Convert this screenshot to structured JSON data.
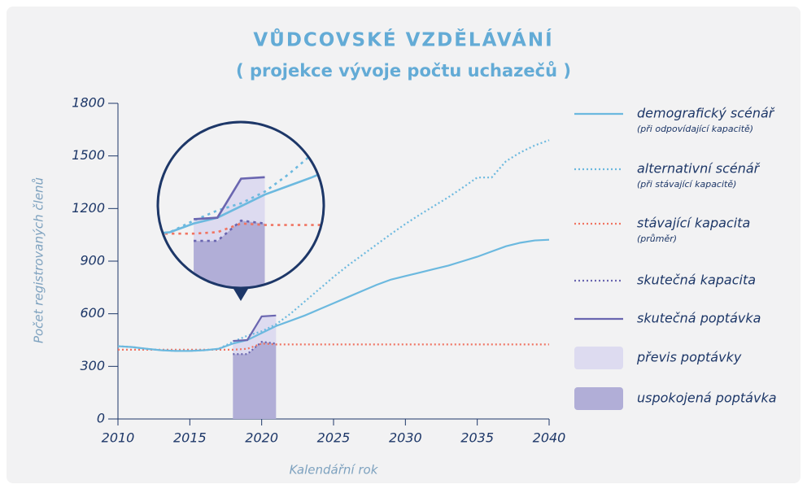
{
  "chart_data": {
    "type": "line",
    "title": "VŮDCOVSKÉ VZDĚLÁVÁNÍ",
    "subtitle": "( projekce vývoje počtu uchazečů )",
    "x_label": "Kalendářní rok",
    "y_label": "Počet registrovaných členů",
    "x": [
      2010,
      2011,
      2012,
      2013,
      2014,
      2015,
      2016,
      2017,
      2018,
      2019,
      2020,
      2021,
      2022,
      2023,
      2024,
      2025,
      2026,
      2027,
      2028,
      2029,
      2030,
      2031,
      2032,
      2033,
      2034,
      2035,
      2036,
      2037,
      2038,
      2039,
      2040
    ],
    "xlim": [
      2010,
      2040
    ],
    "xticks": [
      2010,
      2015,
      2020,
      2025,
      2030,
      2035,
      2040
    ],
    "ylim": [
      0,
      1800
    ],
    "yticks": [
      0,
      300,
      600,
      900,
      1200,
      1500,
      1800
    ],
    "series": [
      {
        "name": "demografický scénář",
        "note": "(při odpovídající kapacitě)",
        "color": "#6cb9df",
        "style": "solid",
        "values": [
          415,
          410,
          400,
          392,
          388,
          388,
          392,
          400,
          430,
          450,
          490,
          530,
          560,
          590,
          625,
          660,
          695,
          730,
          765,
          795,
          815,
          835,
          855,
          875,
          900,
          925,
          955,
          985,
          1005,
          1018,
          1022
        ]
      },
      {
        "name": "alternativní scénář",
        "note": "(při stávající kapacitě)",
        "color": "#6cb9df",
        "style": "dotted",
        "values": [
          415,
          410,
          400,
          392,
          388,
          388,
          392,
          400,
          440,
          475,
          500,
          540,
          600,
          670,
          740,
          810,
          875,
          935,
          995,
          1055,
          1112,
          1165,
          1215,
          1265,
          1320,
          1377,
          1377,
          1470,
          1520,
          1560,
          1590
        ]
      },
      {
        "name": "stávající kapacita",
        "note": "(průměr)",
        "color": "#f07462",
        "style": "dotted",
        "values": [
          395,
          395,
          395,
          395,
          395,
          395,
          395,
          395,
          395,
          400,
          430,
          425,
          425,
          425,
          425,
          425,
          425,
          425,
          425,
          425,
          425,
          425,
          425,
          425,
          425,
          425,
          425,
          425,
          425,
          425,
          425
        ]
      },
      {
        "name": "skutečná kapacita",
        "color": "#6a66b0",
        "style": "dotted",
        "values": [
          null,
          null,
          null,
          null,
          null,
          null,
          null,
          null,
          370,
          370,
          440,
          430,
          null,
          null,
          null,
          null,
          null,
          null,
          null,
          null,
          null,
          null,
          null,
          null,
          null,
          null,
          null,
          null,
          null,
          null,
          null
        ]
      },
      {
        "name": "skutečná poptávka",
        "color": "#6a66b0",
        "style": "solid",
        "values": [
          null,
          null,
          null,
          null,
          null,
          null,
          null,
          null,
          445,
          450,
          585,
          590,
          null,
          null,
          null,
          null,
          null,
          null,
          null,
          null,
          null,
          null,
          null,
          null,
          null,
          null,
          null,
          null,
          null,
          null,
          null
        ]
      }
    ],
    "areas": [
      {
        "name": "převis poptávky",
        "color": "#dddbf0"
      },
      {
        "name": "uspokojená poptávka",
        "color": "#b1aed7"
      }
    ]
  }
}
